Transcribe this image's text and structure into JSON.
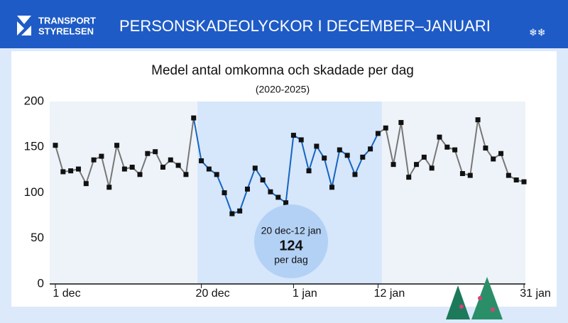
{
  "header": {
    "logo_line1": "TRANSPORT",
    "logo_line2": "STYRELSEN",
    "title": "PERSONSKADEOLYCKOR I DECEMBER–JANUARI"
  },
  "chart_data": {
    "type": "line",
    "title": "Medel antal omkomna och skadade per dag",
    "subtitle": "(2020-2025)",
    "categories": [
      "1 dec",
      null,
      null,
      null,
      null,
      null,
      null,
      null,
      null,
      null,
      null,
      null,
      null,
      null,
      null,
      null,
      null,
      null,
      null,
      "20 dec",
      null,
      null,
      null,
      null,
      null,
      null,
      null,
      null,
      null,
      null,
      null,
      "1 jan",
      null,
      null,
      null,
      null,
      null,
      null,
      null,
      null,
      null,
      null,
      "12 jan",
      null,
      null,
      null,
      null,
      null,
      null,
      null,
      null,
      null,
      null,
      null,
      null,
      null,
      null,
      null,
      null,
      null,
      null,
      "31 jan"
    ],
    "values": [
      152,
      123,
      124,
      126,
      110,
      136,
      140,
      106,
      152,
      126,
      128,
      120,
      143,
      145,
      128,
      136,
      130,
      120,
      182,
      135,
      126,
      120,
      100,
      77,
      80,
      104,
      127,
      114,
      101,
      95,
      89,
      163,
      158,
      124,
      151,
      138,
      106,
      147,
      141,
      120,
      139,
      148,
      165,
      171,
      131,
      177,
      117,
      131,
      139,
      127,
      161,
      150,
      147,
      121,
      119,
      180,
      149,
      137,
      143,
      119,
      114,
      112
    ],
    "color": "#777777",
    "highlight_color": "#1565c0",
    "marker_color": "#111111",
    "highlight_range": [
      19,
      42
    ],
    "annotation": {
      "label": "20 dec-12 jan",
      "value": 124,
      "unit": "per dag"
    },
    "ylim": [
      0,
      200
    ],
    "yticks": [
      0,
      50,
      100,
      150,
      200
    ],
    "grid": false
  }
}
